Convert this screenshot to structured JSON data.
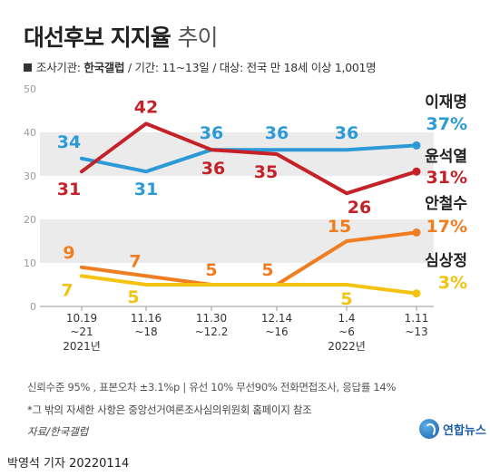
{
  "header": {
    "title": "대선후보 지지율",
    "title_suffix": "추이",
    "info_prefix": "조사기관: ",
    "info_org": "한국갤럽",
    "info_rest": " / 기간: 11~13일 / 대상: 전국 만 18세 이상 1,001명"
  },
  "footer": {
    "note1": "신뢰수준 95% , 표본오차 ±3.1%p  |  유선 10% 무선90% 전화면접조사, 응답률 14%",
    "note2": "*그 밖의 자세한 사항은 중앙선거여론조사심의위원회 홈페이지 참조",
    "source": "자료/한국갤럽",
    "byline": "박영석 기자  20220114",
    "logo_text": "연합뉴스"
  },
  "colors": {
    "background_bands": "#ebebeb",
    "axis": "#999999",
    "tick_text": "#9a9a9a"
  },
  "chart_data": {
    "type": "line",
    "categories": [
      "10.19\n~21",
      "11.16\n~18",
      "11.30\n~12.2",
      "12.14\n~16",
      "1.4\n~6",
      "1.11\n~13"
    ],
    "x_group_labels": [
      {
        "label": "2021년",
        "at_index": 0
      },
      {
        "label": "2022년",
        "at_index": 4
      }
    ],
    "ylim": [
      0,
      50
    ],
    "yticks": [
      0,
      10,
      20,
      30,
      40,
      50
    ],
    "grid": false,
    "background_bands": [
      [
        10,
        20
      ],
      [
        30,
        40
      ]
    ],
    "series": [
      {
        "name": "이재명",
        "color": "#2b9ad6",
        "values": [
          34,
          31,
          36,
          36,
          36,
          37
        ],
        "labels": [
          "34",
          "31",
          "36",
          "36",
          "36",
          null
        ],
        "final_label": "37%"
      },
      {
        "name": "윤석열",
        "color": "#c42129",
        "values": [
          31,
          42,
          36,
          35,
          26,
          31
        ],
        "labels": [
          "31",
          "42",
          "36",
          "35",
          "26",
          null
        ],
        "final_label": "31%"
      },
      {
        "name": "안철수",
        "color": "#ef7d22",
        "values": [
          9,
          7,
          5,
          5,
          15,
          17
        ],
        "labels": [
          "9",
          "7",
          "5",
          "5",
          "15",
          null
        ],
        "final_label": "17%"
      },
      {
        "name": "심상정",
        "color": "#f4c210",
        "values": [
          7,
          5,
          5,
          5,
          5,
          3
        ],
        "labels": [
          "7",
          "5",
          null,
          null,
          "5",
          null
        ],
        "final_label": "3%"
      }
    ]
  }
}
